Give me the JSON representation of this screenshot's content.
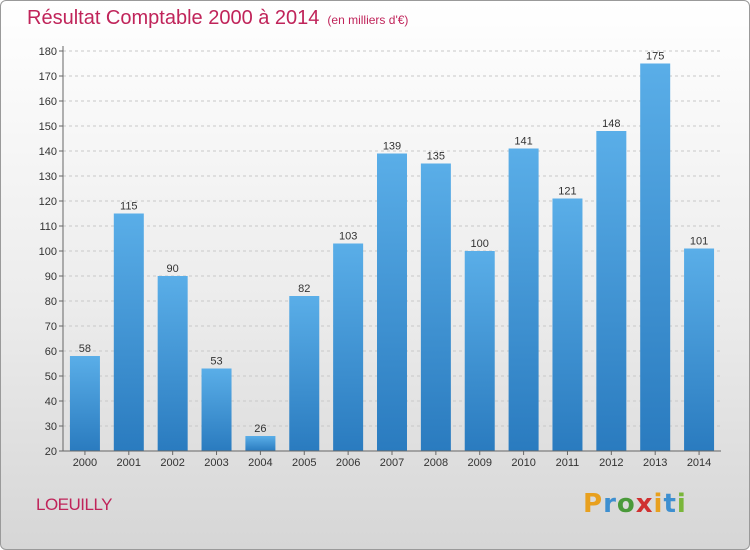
{
  "title": "Résultat Comptable 2000 à 2014",
  "subtitle": "(en milliers d'€)",
  "commune": "LOEUILLY",
  "logo": {
    "letters": [
      "P",
      "r",
      "o",
      "x",
      "i",
      "t",
      "i"
    ],
    "colors": [
      "#e8a01e",
      "#3d8fd0",
      "#4a9a3a",
      "#d03030",
      "#e8a01e",
      "#3d8fd0",
      "#7ab63a"
    ]
  },
  "colors": {
    "bar_light": "#5aaee8",
    "bar_dark": "#2a7bbf",
    "title": "#c0245a"
  },
  "chart_data": {
    "type": "bar",
    "title": "Résultat Comptable 2000 à 2014",
    "categories": [
      "2000",
      "2001",
      "2002",
      "2003",
      "2004",
      "2005",
      "2006",
      "2007",
      "2008",
      "2009",
      "2010",
      "2011",
      "2012",
      "2013",
      "2014"
    ],
    "values": [
      58,
      115,
      90,
      53,
      26,
      82,
      103,
      139,
      135,
      100,
      141,
      121,
      148,
      175,
      101
    ],
    "ylim": [
      20,
      180
    ],
    "yticks": [
      20,
      30,
      40,
      50,
      60,
      70,
      80,
      90,
      100,
      110,
      120,
      130,
      140,
      150,
      160,
      170,
      180
    ],
    "grid": true
  }
}
